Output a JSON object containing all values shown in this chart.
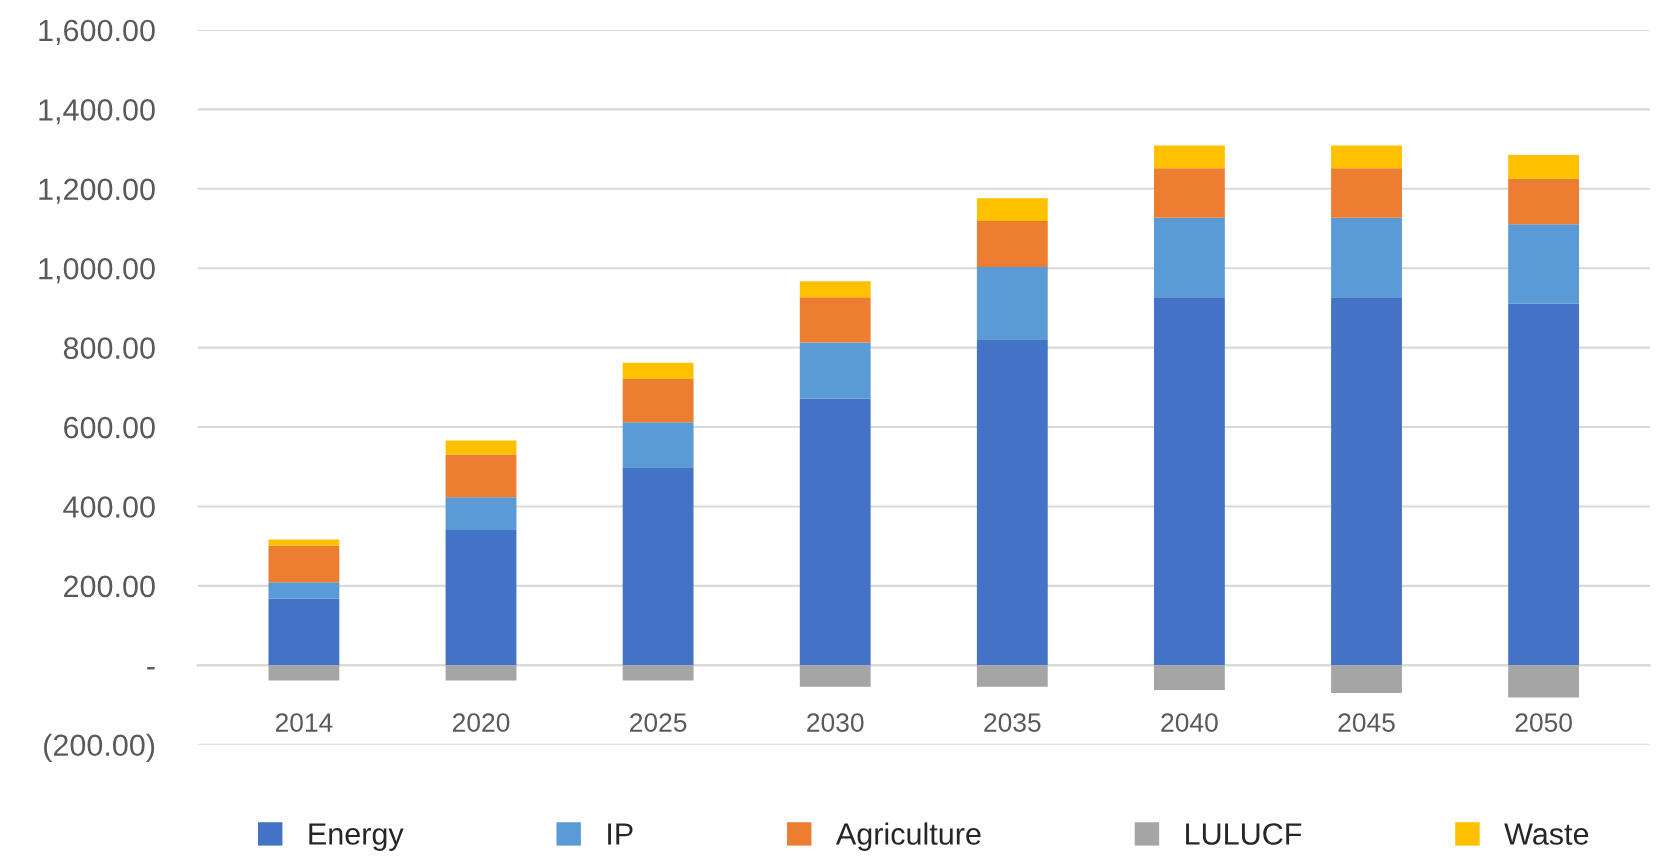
{
  "chart_data": {
    "type": "bar",
    "stacked": true,
    "categories": [
      "2014",
      "2020",
      "2025",
      "2030",
      "2035",
      "2040",
      "2045",
      "2050"
    ],
    "series": [
      {
        "name": "Energy",
        "color": "#4472c4",
        "values": [
          168,
          341,
          499,
          672,
          821,
          927,
          927,
          911
        ]
      },
      {
        "name": "IP",
        "color": "#5b9bd5",
        "values": [
          41,
          82,
          113,
          141,
          182,
          200,
          200,
          200
        ]
      },
      {
        "name": "Agriculture",
        "color": "#ed7d31",
        "values": [
          92,
          108,
          109,
          114,
          116,
          125,
          125,
          114
        ]
      },
      {
        "name": "LULUCF",
        "color": "#a5a5a5",
        "values": [
          -38,
          -38,
          -38,
          -54,
          -54,
          -62,
          -70,
          -81
        ]
      },
      {
        "name": "Waste",
        "color": "#ffc000",
        "values": [
          16,
          35,
          41,
          40,
          57,
          57,
          57,
          60
        ]
      }
    ],
    "ylim": [
      -200,
      1600
    ],
    "yticks": [
      {
        "value": -200,
        "label": "(200.00)"
      },
      {
        "value": 0,
        "label": "-"
      },
      {
        "value": 200,
        "label": "200.00"
      },
      {
        "value": 400,
        "label": "400.00"
      },
      {
        "value": 600,
        "label": "600.00"
      },
      {
        "value": 800,
        "label": "800.00"
      },
      {
        "value": 1000,
        "label": "1,000.00"
      },
      {
        "value": 1200,
        "label": "1,200.00"
      },
      {
        "value": 1400,
        "label": "1,400.00"
      },
      {
        "value": 1600,
        "label": "1,600.00"
      }
    ],
    "grid": "y",
    "legend": "bottom"
  }
}
